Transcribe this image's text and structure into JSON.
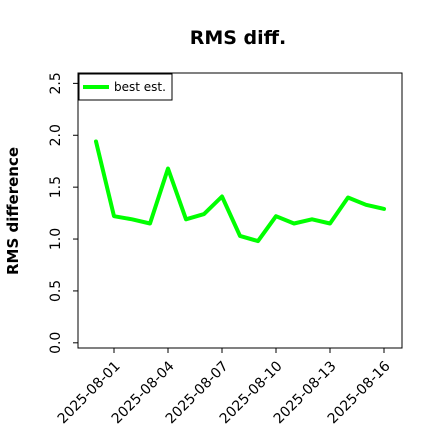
{
  "chart_data": {
    "type": "line",
    "title": "RMS diff.",
    "xlabel": "",
    "ylabel": "RMS difference",
    "ylim": [
      -0.05,
      2.6
    ],
    "yticks": [
      "0.0",
      "0.5",
      "1.0",
      "1.5",
      "2.0",
      "2.5"
    ],
    "xticks": [
      "2025-08-01",
      "2025-08-04",
      "2025-08-07",
      "2025-08-10",
      "2025-08-13",
      "2025-08-16"
    ],
    "x": [
      "2025-07-31",
      "2025-08-01",
      "2025-08-02",
      "2025-08-03",
      "2025-08-04",
      "2025-08-05",
      "2025-08-06",
      "2025-08-07",
      "2025-08-08",
      "2025-08-09",
      "2025-08-10",
      "2025-08-11",
      "2025-08-12",
      "2025-08-13",
      "2025-08-14",
      "2025-08-15",
      "2025-08-16"
    ],
    "series": [
      {
        "name": "best est.",
        "color": "#00ff00",
        "values": [
          1.94,
          1.22,
          1.19,
          1.15,
          1.68,
          1.19,
          1.24,
          1.41,
          1.03,
          0.98,
          1.22,
          1.15,
          1.19,
          1.15,
          1.4,
          1.33,
          1.29
        ]
      }
    ],
    "legend_position": "top-left",
    "grid": false
  }
}
